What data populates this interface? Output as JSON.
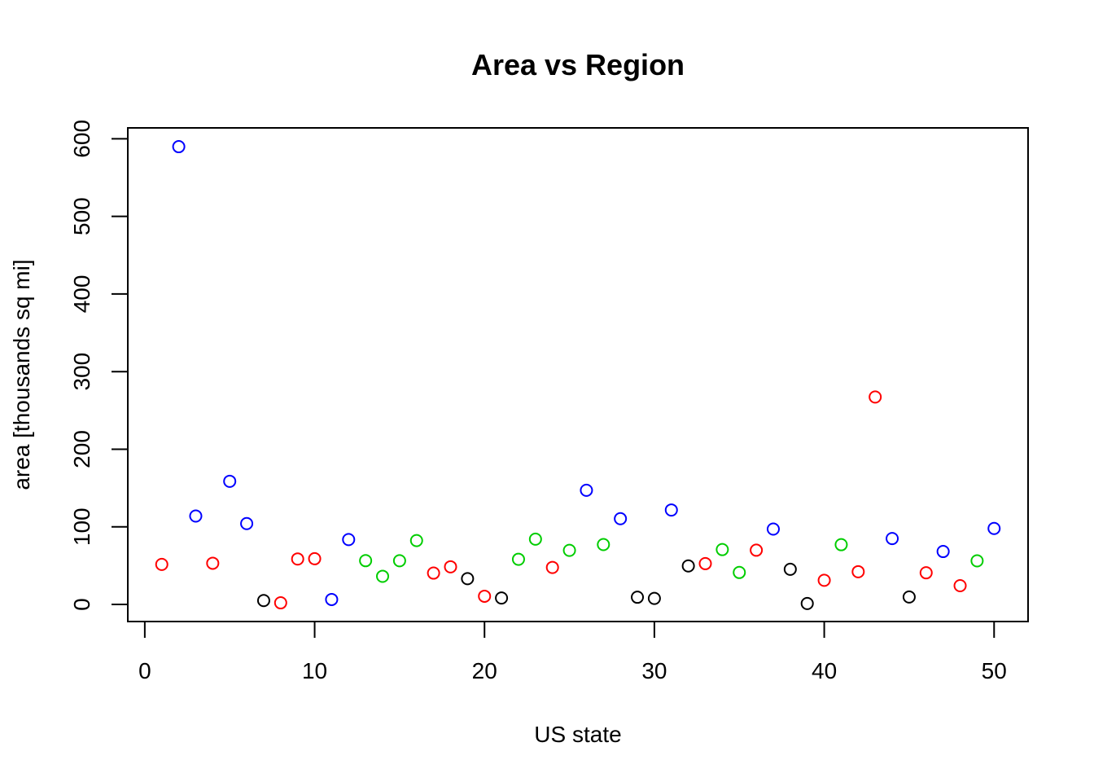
{
  "chart_data": {
    "type": "scatter",
    "title": "Area vs Region",
    "xlabel": "US state",
    "ylabel": "area [thousands sq mi]",
    "xlim": [
      -1,
      52
    ],
    "ylim": [
      -22,
      614
    ],
    "xticks": [
      0,
      10,
      20,
      30,
      40,
      50
    ],
    "yticks": [
      0,
      100,
      200,
      300,
      400,
      500,
      600
    ],
    "grid": false,
    "colors": {
      "red": "#ff0000",
      "blue": "#0000ff",
      "green": "#00cd00",
      "black": "#000000"
    },
    "points": [
      {
        "x": 1,
        "y": 51.6,
        "color": "red"
      },
      {
        "x": 2,
        "y": 589.8,
        "color": "blue"
      },
      {
        "x": 3,
        "y": 113.9,
        "color": "blue"
      },
      {
        "x": 4,
        "y": 53.1,
        "color": "red"
      },
      {
        "x": 5,
        "y": 158.7,
        "color": "blue"
      },
      {
        "x": 6,
        "y": 104.2,
        "color": "blue"
      },
      {
        "x": 7,
        "y": 5.0,
        "color": "black"
      },
      {
        "x": 8,
        "y": 2.1,
        "color": "red"
      },
      {
        "x": 9,
        "y": 58.6,
        "color": "red"
      },
      {
        "x": 10,
        "y": 58.9,
        "color": "red"
      },
      {
        "x": 11,
        "y": 6.4,
        "color": "blue"
      },
      {
        "x": 12,
        "y": 83.6,
        "color": "blue"
      },
      {
        "x": 13,
        "y": 56.4,
        "color": "green"
      },
      {
        "x": 14,
        "y": 36.3,
        "color": "green"
      },
      {
        "x": 15,
        "y": 56.3,
        "color": "green"
      },
      {
        "x": 16,
        "y": 82.3,
        "color": "green"
      },
      {
        "x": 17,
        "y": 40.4,
        "color": "red"
      },
      {
        "x": 18,
        "y": 48.5,
        "color": "red"
      },
      {
        "x": 19,
        "y": 33.2,
        "color": "black"
      },
      {
        "x": 20,
        "y": 10.6,
        "color": "red"
      },
      {
        "x": 21,
        "y": 8.3,
        "color": "black"
      },
      {
        "x": 22,
        "y": 58.2,
        "color": "green"
      },
      {
        "x": 23,
        "y": 84.1,
        "color": "green"
      },
      {
        "x": 24,
        "y": 47.7,
        "color": "red"
      },
      {
        "x": 25,
        "y": 69.7,
        "color": "green"
      },
      {
        "x": 26,
        "y": 147.1,
        "color": "blue"
      },
      {
        "x": 27,
        "y": 77.2,
        "color": "green"
      },
      {
        "x": 28,
        "y": 110.5,
        "color": "blue"
      },
      {
        "x": 29,
        "y": 9.3,
        "color": "black"
      },
      {
        "x": 30,
        "y": 7.8,
        "color": "black"
      },
      {
        "x": 31,
        "y": 121.7,
        "color": "blue"
      },
      {
        "x": 32,
        "y": 49.6,
        "color": "black"
      },
      {
        "x": 33,
        "y": 52.6,
        "color": "red"
      },
      {
        "x": 34,
        "y": 70.7,
        "color": "green"
      },
      {
        "x": 35,
        "y": 41.2,
        "color": "green"
      },
      {
        "x": 36,
        "y": 69.9,
        "color": "red"
      },
      {
        "x": 37,
        "y": 97.1,
        "color": "blue"
      },
      {
        "x": 38,
        "y": 45.3,
        "color": "black"
      },
      {
        "x": 39,
        "y": 1.2,
        "color": "black"
      },
      {
        "x": 40,
        "y": 31.1,
        "color": "red"
      },
      {
        "x": 41,
        "y": 77.0,
        "color": "green"
      },
      {
        "x": 42,
        "y": 42.2,
        "color": "red"
      },
      {
        "x": 43,
        "y": 267.3,
        "color": "red"
      },
      {
        "x": 44,
        "y": 84.9,
        "color": "blue"
      },
      {
        "x": 45,
        "y": 9.6,
        "color": "black"
      },
      {
        "x": 46,
        "y": 40.8,
        "color": "red"
      },
      {
        "x": 47,
        "y": 68.2,
        "color": "blue"
      },
      {
        "x": 48,
        "y": 24.2,
        "color": "red"
      },
      {
        "x": 49,
        "y": 56.2,
        "color": "green"
      },
      {
        "x": 50,
        "y": 97.9,
        "color": "blue"
      }
    ]
  }
}
